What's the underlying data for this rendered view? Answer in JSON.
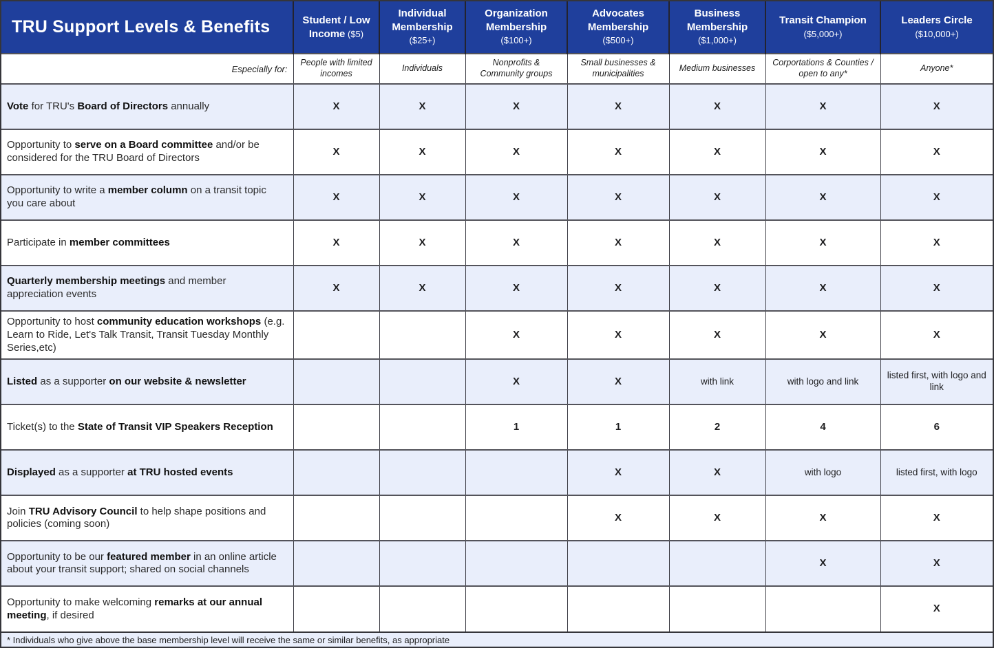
{
  "title": "TRU Support Levels & Benefits",
  "especially_for_label": "Especially for:",
  "colors": {
    "header_bg": "#1f3f9c",
    "row_alt_bg": "#e9eefb",
    "border": "#3c3c44"
  },
  "columns": [
    {
      "name": "Student / Low Income",
      "price": "($5)",
      "audience": "People with limited incomes"
    },
    {
      "name": "Individual Membership",
      "price": "($25+)",
      "audience": "Individuals"
    },
    {
      "name": "Organization Membership",
      "price": "($100+)",
      "audience": "Nonprofits & Community groups"
    },
    {
      "name": "Advocates Membership",
      "price": "($500+)",
      "audience": "Small businesses & municipalities"
    },
    {
      "name": "Business Membership",
      "price": "($1,000+)",
      "audience": "Medium businesses"
    },
    {
      "name": "Transit Champion",
      "price": "($5,000+)",
      "audience": "Corportations & Counties / open to any*"
    },
    {
      "name": "Leaders Circle",
      "price": "($10,000+)",
      "audience": "Anyone*"
    }
  ],
  "rows": [
    {
      "benefit": [
        [
          "Vote",
          1
        ],
        [
          " for TRU's ",
          0
        ],
        [
          "Board of Directors",
          1
        ],
        [
          " annually",
          0
        ]
      ],
      "cells": [
        "X",
        "X",
        "X",
        "X",
        "X",
        "X",
        "X"
      ]
    },
    {
      "benefit": [
        [
          "Opportunity to ",
          0
        ],
        [
          "serve on a Board committee",
          1
        ],
        [
          " and/or be considered for the TRU Board of Directors",
          0
        ]
      ],
      "cells": [
        "X",
        "X",
        "X",
        "X",
        "X",
        "X",
        "X"
      ]
    },
    {
      "benefit": [
        [
          "Opportunity to write a ",
          0
        ],
        [
          "member column",
          1
        ],
        [
          " on a transit topic you care about",
          0
        ]
      ],
      "cells": [
        "X",
        "X",
        "X",
        "X",
        "X",
        "X",
        "X"
      ]
    },
    {
      "benefit": [
        [
          "Participate in ",
          0
        ],
        [
          "member committees",
          1
        ]
      ],
      "cells": [
        "X",
        "X",
        "X",
        "X",
        "X",
        "X",
        "X"
      ]
    },
    {
      "benefit": [
        [
          "Quarterly membership meetings",
          1
        ],
        [
          " and member appreciation events",
          0
        ]
      ],
      "cells": [
        "X",
        "X",
        "X",
        "X",
        "X",
        "X",
        "X"
      ]
    },
    {
      "benefit": [
        [
          "Opportunity to host ",
          0
        ],
        [
          "community education workshops",
          1
        ],
        [
          " (e.g. Learn to Ride, Let's Talk Transit, Transit Tuesday Monthly Series,etc)",
          0
        ]
      ],
      "cells": [
        "",
        "",
        "X",
        "X",
        "X",
        "X",
        "X"
      ]
    },
    {
      "benefit": [
        [
          "Listed",
          1
        ],
        [
          " as a supporter ",
          0
        ],
        [
          "on our website & newsletter",
          1
        ]
      ],
      "cells": [
        "",
        "",
        "X",
        "X",
        "with link",
        "with logo and link",
        "listed first, with logo and link"
      ]
    },
    {
      "benefit": [
        [
          "Ticket(s) to the ",
          0
        ],
        [
          "State of Transit VIP Speakers Reception",
          1
        ]
      ],
      "cells": [
        "",
        "",
        "1",
        "1",
        "2",
        "4",
        "6"
      ]
    },
    {
      "benefit": [
        [
          "Displayed",
          1
        ],
        [
          " as a supporter ",
          0
        ],
        [
          "at TRU hosted events",
          1
        ]
      ],
      "cells": [
        "",
        "",
        "",
        "X",
        "X",
        "with logo",
        "listed first, with logo"
      ]
    },
    {
      "benefit": [
        [
          "Join ",
          0
        ],
        [
          "TRU Advisory Council",
          1
        ],
        [
          " to help shape positions and policies (coming soon)",
          0
        ]
      ],
      "cells": [
        "",
        "",
        "",
        "X",
        "X",
        "X",
        "X"
      ]
    },
    {
      "benefit": [
        [
          "Opportunity to be our ",
          0
        ],
        [
          "featured member",
          1
        ],
        [
          " in an online article about your transit support; shared on social channels",
          0
        ]
      ],
      "cells": [
        "",
        "",
        "",
        "",
        "",
        "X",
        "X"
      ]
    },
    {
      "benefit": [
        [
          "Opportunity to make welcoming ",
          0
        ],
        [
          "remarks at our annual meeting",
          1
        ],
        [
          ", if desired",
          0
        ]
      ],
      "cells": [
        "",
        "",
        "",
        "",
        "",
        "",
        "X"
      ]
    }
  ],
  "footnote": "* Individuals who give above the base membership level will receive the same or similar benefits, as appropriate"
}
